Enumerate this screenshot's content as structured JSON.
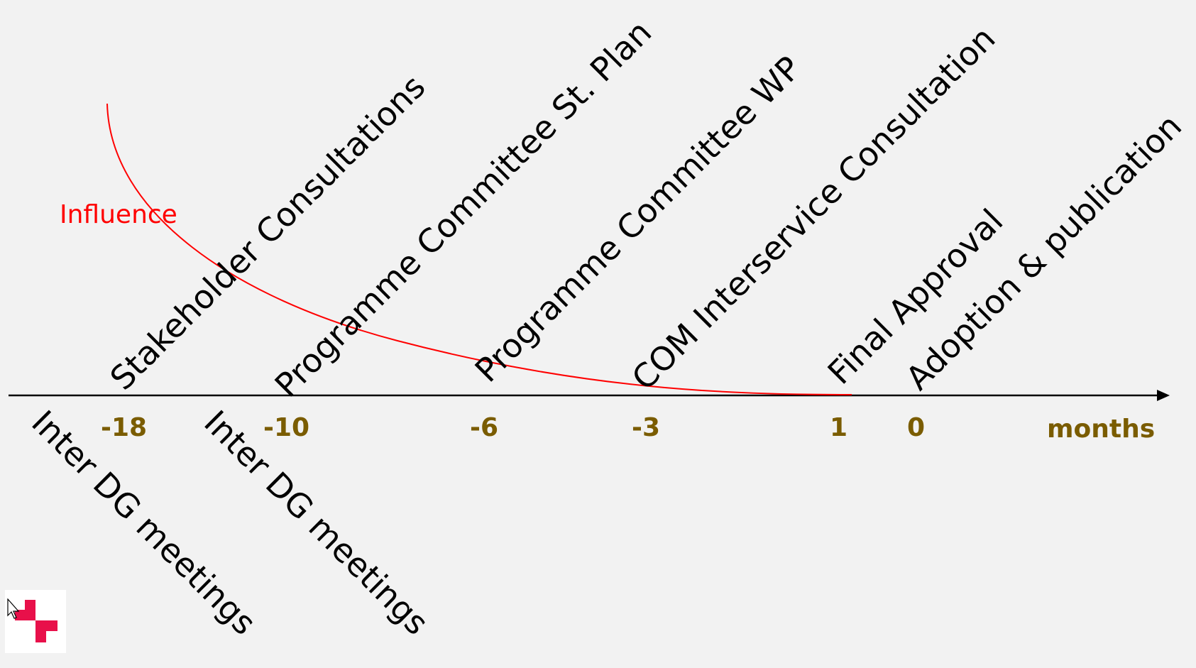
{
  "axis": {
    "unit_label": "months",
    "ticks": [
      {
        "label": "-18"
      },
      {
        "label": "-10"
      },
      {
        "label": "-6"
      },
      {
        "label": "-3"
      },
      {
        "label": "1"
      },
      {
        "label": "0"
      }
    ]
  },
  "events_above": [
    {
      "text": "Stakeholder Consultations"
    },
    {
      "text": "Programme Committee St. Plan"
    },
    {
      "text": "Programme Committee WP"
    },
    {
      "text": "COM Interservice Consultation"
    },
    {
      "text": "Final Approval"
    },
    {
      "text": "Adoption & publication"
    }
  ],
  "events_below": [
    {
      "text": "Inter DG meetings"
    },
    {
      "text": "Inter DG meetings"
    }
  ],
  "influence": {
    "label": "Influence"
  },
  "colors": {
    "background": "#f2f2f2",
    "axis": "#000000",
    "tick_label": "#7a5c00",
    "influence": "#ff0000",
    "event_text": "#000000",
    "logo_accent": "#e8104a"
  },
  "logo": {
    "icon": "brand-logo-icon"
  },
  "cursor": {
    "icon": "mouse-pointer-icon"
  }
}
